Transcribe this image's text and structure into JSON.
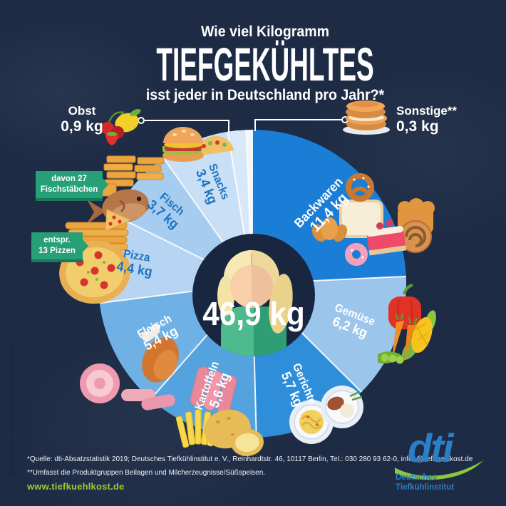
{
  "header": {
    "kicker": "Wie viel Kilogramm",
    "title": "TIEFGEKÜHLTES",
    "subtitle": "isst jeder in Deutschland pro Jahr?*"
  },
  "chart_data": {
    "type": "pie",
    "title": "Wie viel Kilogramm Tiefgekühltes isst jeder in Deutschland pro Jahr?*",
    "unit": "kg",
    "total_value": 46.9,
    "total_label": "46,9 kg",
    "start_angle_deg": 0,
    "clockwise": true,
    "legend_position": "on-slices",
    "segments": [
      {
        "label": "Backwaren",
        "value": 11.4,
        "display": "11,4 kg",
        "color": "#1a7ed6",
        "text_color": "#ffffff"
      },
      {
        "label": "Gemüse",
        "value": 6.2,
        "display": "6,2 kg",
        "color": "#9cc5ec",
        "text_color": "#ffffff"
      },
      {
        "label": "Gerichte",
        "value": 5.7,
        "display": "5,7 kg",
        "color": "#2f8ed9",
        "text_color": "#ffffff"
      },
      {
        "label": "Kartoffeln",
        "value": 5.6,
        "display": "5,6 kg",
        "color": "#55a3de",
        "text_color": "#ffffff"
      },
      {
        "label": "Fleisch",
        "value": 5.4,
        "display": "5,4 kg",
        "color": "#6fb0e5",
        "text_color": "#ffffff"
      },
      {
        "label": "Pizza",
        "value": 4.4,
        "display": "4,4 kg",
        "color": "#b7d5f2",
        "text_color": "#1c74c2"
      },
      {
        "label": "Fisch",
        "value": 3.7,
        "display": "3,7 kg",
        "color": "#a6ccf0",
        "text_color": "#1c74c2"
      },
      {
        "label": "Snacks",
        "value": 3.4,
        "display": "3,4 kg",
        "color": "#c9dff6",
        "text_color": "#1c74c2"
      },
      {
        "label": "Obst",
        "value": 0.9,
        "display": "0,9 kg",
        "color": "#d9e8f8",
        "callout": true
      },
      {
        "label": "Sonstige**",
        "value": 0.3,
        "display": "0,3 kg",
        "color": "#f1f6fd",
        "callout": true
      }
    ]
  },
  "badges": {
    "fisch": {
      "line1": "davon 27",
      "line2": "Fischstäbchen"
    },
    "pizza": {
      "line1": "entspr.",
      "line2": "13 Pizzen"
    }
  },
  "footer": {
    "source": "*Quelle: dti-Absatzstatistik 2019; Deutsches Tiefkühlinstitut e. V., Reinhardtstr. 46, 10117 Berlin, Tel.: 030 280 93 62-0, infos@tiefkuehlkost.de",
    "note": "**Umfasst die Produktgruppen Beilagen und Milcherzeugnisse/Süßspeisen.",
    "url": "www.tiefkuehlkost.de",
    "credit": "Illustrationen: designed by freepik and flaticon"
  },
  "logo": {
    "short": "dti",
    "line1": "Deutsches",
    "line2": "Tiefkühlinstitut"
  },
  "colors": {
    "background": "#1d2b45",
    "label_blue": "#1c74c2",
    "badge_green": "#27a077",
    "badge_green_dark": "#17795a",
    "link_green": "#9fca2e",
    "logo_blue": "#2b7fc6",
    "logo_green": "#8dc63f"
  }
}
